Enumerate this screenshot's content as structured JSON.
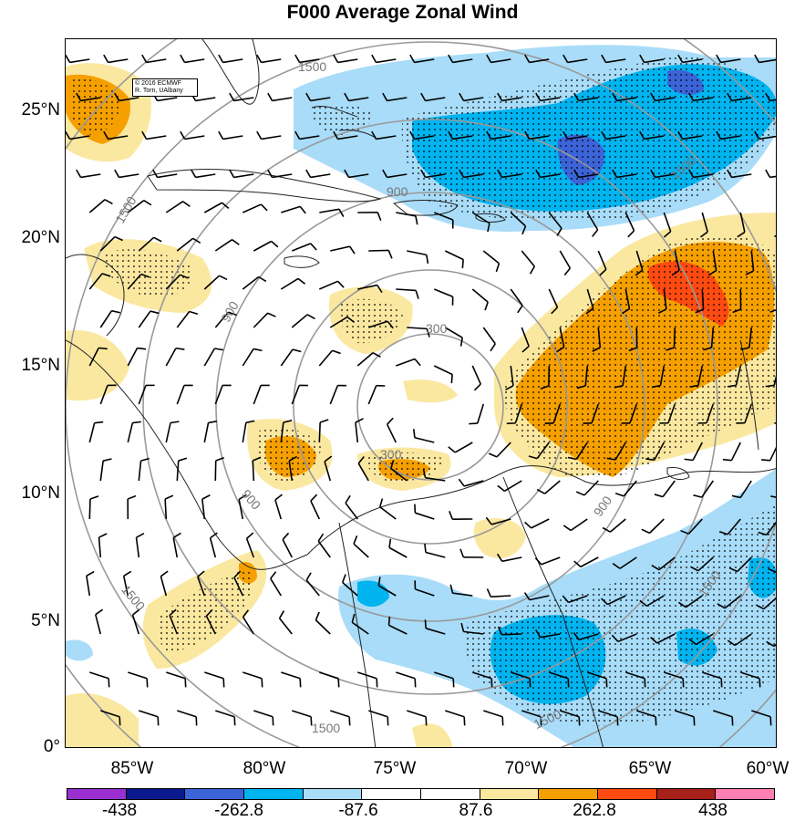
{
  "title": "F000 Average Zonal Wind",
  "credit": {
    "line1": "© 2016 ECMWF",
    "line2": "R. Torn, UAlbany"
  },
  "lat_labels": [
    "25°N",
    "20°N",
    "15°N",
    "10°N",
    "5°N",
    "0°"
  ],
  "lon_labels": [
    "85°W",
    "80°W",
    "75°W",
    "70°W",
    "65°W",
    "60°W"
  ],
  "range_ring_labels": [
    "300",
    "300",
    "900",
    "900",
    "900",
    "900",
    "1500",
    "1500",
    "1500",
    "1500",
    "1500",
    "1500",
    "1500"
  ],
  "colorbar": {
    "colors": [
      "#9b30d0",
      "#0a1a8c",
      "#3c64d8",
      "#00b4f0",
      "#a8dcf8",
      "#ffffff",
      "#ffffff",
      "#fbe8a0",
      "#f5a000",
      "#ff4a10",
      "#a8201a",
      "#ff80b4"
    ],
    "labels": [
      "-438",
      "-262.8",
      "-87.6",
      "87.6",
      "262.8",
      "438"
    ]
  },
  "palette": {
    "light_yellow": "#fbe8a0",
    "orange": "#f5a000",
    "red_orange": "#ff4a10",
    "light_blue": "#a8dcf8",
    "cyan_blue": "#00b4f0",
    "blue": "#3c64d8",
    "navy": "#0a1a8c"
  },
  "map_extent": {
    "lon_min": -88,
    "lon_max": -60,
    "lat_min": 0,
    "lat_max": 27.5
  }
}
